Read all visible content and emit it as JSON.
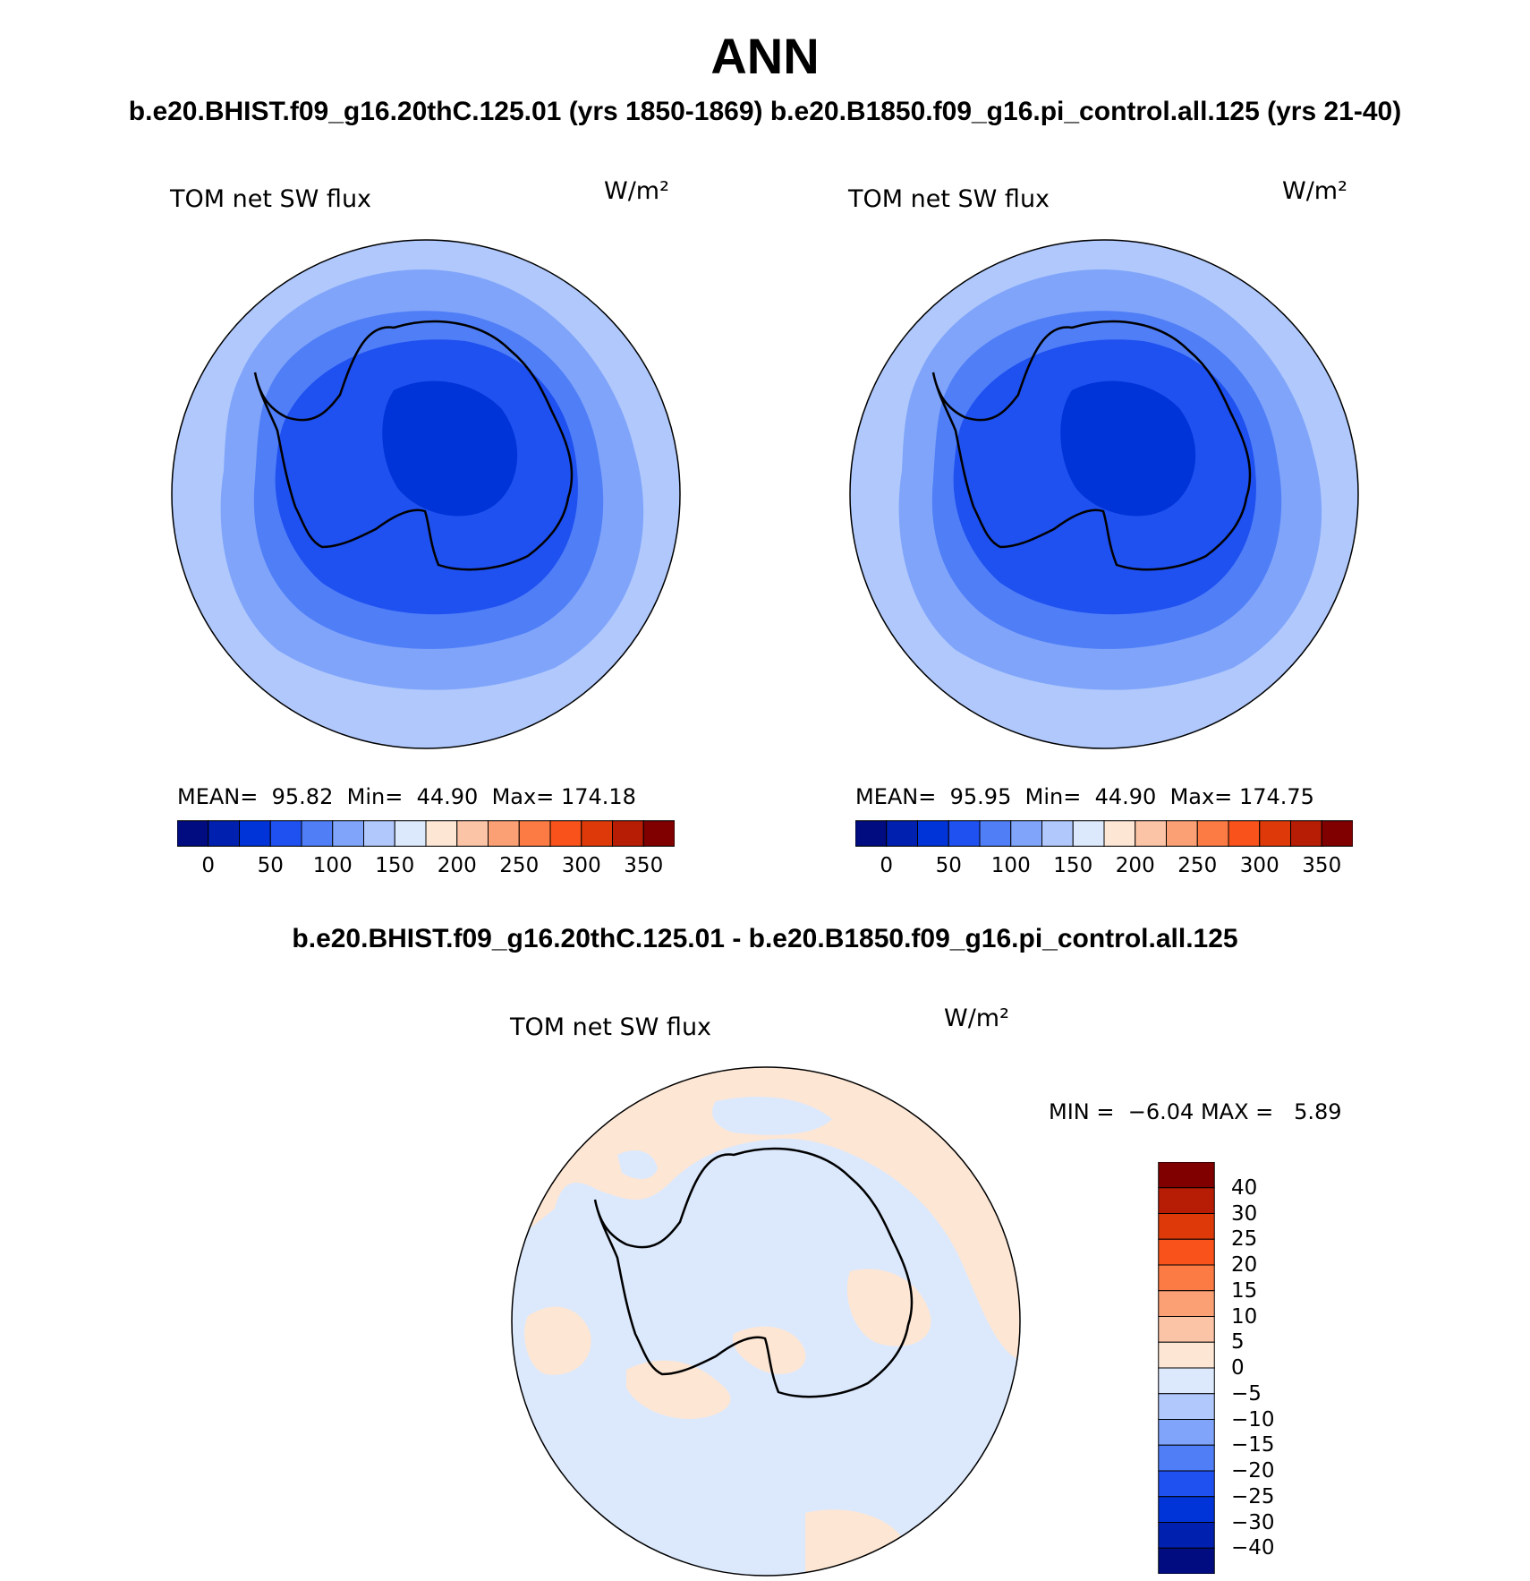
{
  "title": "ANN",
  "subtitle": "b.e20.BHIST.f09_g16.20thC.125.01 (yrs 1850-1869)  b.e20.B1850.f09_g16.pi_control.all.125 (yrs 21-40)",
  "panels": [
    {
      "variable": "TOM net SW flux",
      "units": "W/m²",
      "mean_label": "MEAN=",
      "mean": "95.82",
      "min_label": "Min=",
      "min": "44.90",
      "max_label": "Max=",
      "max": "174.18"
    },
    {
      "variable": "TOM net SW flux",
      "units": "W/m²",
      "mean_label": "MEAN=",
      "mean": "95.95",
      "min_label": "Min=",
      "min": "44.90",
      "max_label": "Max=",
      "max": "174.75"
    }
  ],
  "colorbar": {
    "ticks": [
      "0",
      "50",
      "100",
      "150",
      "200",
      "250",
      "300",
      "350"
    ],
    "colors": [
      "#000c80",
      "#0020b0",
      "#0034d8",
      "#1f50f0",
      "#4f7ef7",
      "#7fa4fa",
      "#b0c8fc",
      "#dce9fd",
      "#fde6d4",
      "#fcc4a6",
      "#fb9f74",
      "#fc7a43",
      "#f9531b",
      "#de3a09",
      "#b71c05",
      "#800000"
    ]
  },
  "difference": {
    "title": "b.e20.BHIST.f09_g16.20thC.125.01 - b.e20.B1850.f09_g16.pi_control.all.125",
    "variable": "TOM net SW flux",
    "units": "W/m²",
    "min_label": "MIN =",
    "min": "−6.04",
    "max_label": "MAX =",
    "max": "5.89",
    "colorbar_ticks": [
      "40",
      "30",
      "25",
      "20",
      "15",
      "10",
      "5",
      "0",
      "−5",
      "−10",
      "−15",
      "−20",
      "−25",
      "−30",
      "−40"
    ],
    "colorbar_colors": [
      "#800000",
      "#b71c05",
      "#de3a09",
      "#f9531b",
      "#fc7a43",
      "#fb9f74",
      "#fcc4a6",
      "#fde6d4",
      "#dce9fd",
      "#b0c8fc",
      "#7fa4fa",
      "#4f7ef7",
      "#1f50f0",
      "#0034d8",
      "#0020b0",
      "#000c80"
    ]
  },
  "map_colors": {
    "outer": "#b0c8fc",
    "ring_1": "#7fa4fa",
    "ring_2": "#4f7ef7",
    "ring_3": "#1f50f0",
    "inner": "#0034d8",
    "diff_negative": "#dce9fd",
    "diff_positive": "#fde6d4",
    "coast": "#000000"
  }
}
